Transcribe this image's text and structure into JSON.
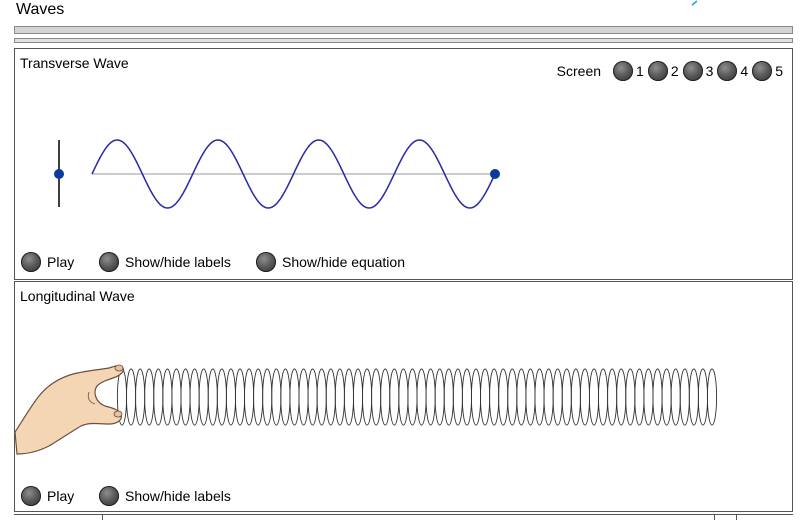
{
  "app": {
    "title": "Waves"
  },
  "transverse": {
    "title": "Transverse Wave",
    "screen_label": "Screen",
    "screens": [
      "1",
      "2",
      "3",
      "4",
      "5"
    ],
    "buttons": {
      "play": "Play",
      "labels": "Show/hide labels",
      "equation": "Show/hide equation"
    }
  },
  "longitudinal": {
    "title": "Longitudinal Wave",
    "buttons": {
      "play": "Play",
      "labels": "Show/hide labels"
    }
  },
  "colors": {
    "wave": "#2a2aa8",
    "marker": "#0a3a9a",
    "axis": "#9a9a9a",
    "accent": "#1ea0e6"
  }
}
